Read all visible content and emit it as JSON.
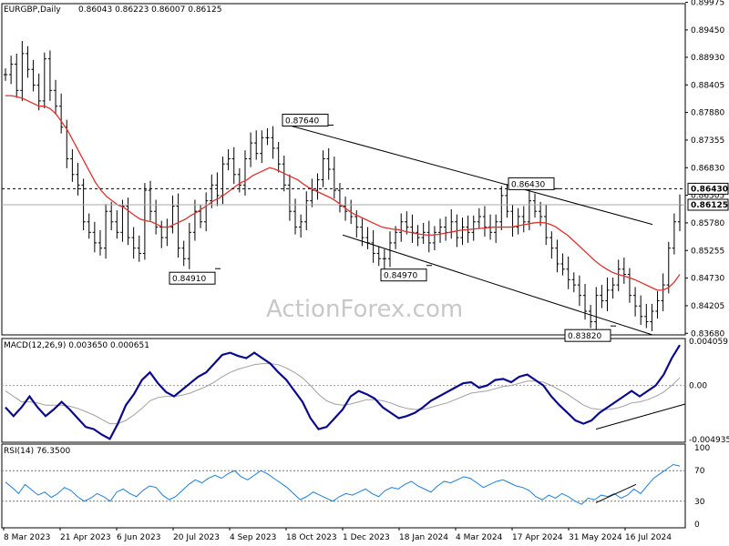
{
  "header": {
    "symbol": "EURGBP,Daily",
    "ohlc": "0.86043 0.86223 0.86007 0.86125"
  },
  "watermark": "ActionForex.com",
  "colors": {
    "price_bars": "#000000",
    "moving_average": "#e03030",
    "macd_main": "#0a0a8c",
    "macd_signal": "#a0a0a0",
    "rsi_line": "#1e7fd8",
    "trendline": "#000000",
    "label_text": "#000080"
  },
  "chart_data": [
    {
      "type": "ohlc",
      "panel": "price",
      "ylim": [
        0.8365,
        0.8995
      ],
      "price_ticks": [
        "0.89975",
        "0.89450",
        "0.88930",
        "0.88405",
        "0.87880",
        "0.87355",
        "0.86830",
        "0.86305",
        "0.85780",
        "0.85255",
        "0.84730",
        "0.84205",
        "0.83680"
      ],
      "x_labels": [
        "8 Mar 2023",
        "21 Apr 2023",
        "6 Jun 2023",
        "20 Jul 2023",
        "4 Sep 2023",
        "18 Oct 2023",
        "1 Dec 2023",
        "18 Jan 2024",
        "4 Mar 2024",
        "17 Apr 2024",
        "31 May 2024",
        "16 Jul 2024"
      ],
      "closes": [
        0.886,
        0.888,
        0.883,
        0.89,
        0.887,
        0.884,
        0.881,
        0.889,
        0.883,
        0.88,
        0.876,
        0.87,
        0.867,
        0.865,
        0.858,
        0.856,
        0.854,
        0.853,
        0.86,
        0.858,
        0.856,
        0.861,
        0.855,
        0.853,
        0.852,
        0.864,
        0.86,
        0.857,
        0.855,
        0.857,
        0.861,
        0.853,
        0.851,
        0.856,
        0.86,
        0.858,
        0.862,
        0.865,
        0.863,
        0.869,
        0.87,
        0.867,
        0.865,
        0.87,
        0.873,
        0.871,
        0.874,
        0.874,
        0.872,
        0.869,
        0.865,
        0.86,
        0.857,
        0.858,
        0.862,
        0.864,
        0.866,
        0.87,
        0.868,
        0.864,
        0.861,
        0.86,
        0.859,
        0.857,
        0.855,
        0.854,
        0.852,
        0.851,
        0.851,
        0.854,
        0.856,
        0.858,
        0.857,
        0.856,
        0.855,
        0.856,
        0.854,
        0.856,
        0.857,
        0.856,
        0.858,
        0.855,
        0.857,
        0.856,
        0.858,
        0.859,
        0.857,
        0.856,
        0.858,
        0.863,
        0.86,
        0.857,
        0.859,
        0.858,
        0.862,
        0.86,
        0.859,
        0.855,
        0.853,
        0.85,
        0.849,
        0.847,
        0.846,
        0.844,
        0.841,
        0.839,
        0.844,
        0.843,
        0.845,
        0.846,
        0.849,
        0.848,
        0.844,
        0.842,
        0.84,
        0.839,
        0.841,
        0.843,
        0.846,
        0.853,
        0.858,
        0.8612
      ],
      "moving_average_values": [
        0.882,
        0.882,
        0.8818,
        0.8815,
        0.881,
        0.8805,
        0.88,
        0.88,
        0.8795,
        0.8785,
        0.877,
        0.8755,
        0.8735,
        0.8715,
        0.8695,
        0.8675,
        0.8655,
        0.864,
        0.8628,
        0.862,
        0.8612,
        0.8608,
        0.86,
        0.8592,
        0.8585,
        0.8582,
        0.858,
        0.8575,
        0.857,
        0.857,
        0.8575,
        0.858,
        0.8585,
        0.8592,
        0.8598,
        0.8605,
        0.8612,
        0.862,
        0.8625,
        0.8632,
        0.864,
        0.8648,
        0.8655,
        0.866,
        0.8668,
        0.8673,
        0.8678,
        0.8683,
        0.868,
        0.8675,
        0.867,
        0.8665,
        0.866,
        0.8652,
        0.8645,
        0.864,
        0.8635,
        0.863,
        0.8625,
        0.8618,
        0.861,
        0.8602,
        0.8595,
        0.859,
        0.8585,
        0.858,
        0.8575,
        0.857,
        0.8568,
        0.8566,
        0.8565,
        0.8562,
        0.856,
        0.8558,
        0.8556,
        0.8555,
        0.8555,
        0.8556,
        0.8558,
        0.856,
        0.8562,
        0.8564,
        0.8565,
        0.8566,
        0.8567,
        0.8568,
        0.8569,
        0.857,
        0.857,
        0.857,
        0.857,
        0.8572,
        0.8574,
        0.8576,
        0.8578,
        0.8579,
        0.8578,
        0.8575,
        0.857,
        0.8562,
        0.8555,
        0.8545,
        0.8535,
        0.8525,
        0.8515,
        0.8505,
        0.8497,
        0.849,
        0.8484,
        0.848,
        0.8477,
        0.8474,
        0.847,
        0.8465,
        0.846,
        0.8455,
        0.845,
        0.845,
        0.8455,
        0.8465,
        0.848
      ],
      "dashed_level": "0.86430",
      "last_price": "0.86125",
      "annotations": [
        "0.84910",
        "0.87640",
        "0.84970",
        "0.86430",
        "0.83820"
      ],
      "trendlines": [
        {
          "from": [
            "18 Oct 2023",
            0.8765
          ],
          "to": [
            "16 Jul 2024",
            0.8575
          ]
        },
        {
          "from": [
            "1 Dec 2023",
            0.8555
          ],
          "to": [
            "16 Jul 2024",
            0.8365
          ]
        }
      ]
    },
    {
      "type": "line",
      "panel": "macd",
      "title": "MACD(12,26,9) 0.003650 0.000651",
      "ylim": [
        -0.0052,
        0.0043
      ],
      "tick_labels": [
        "0.004059",
        "0.00",
        "-0.004935"
      ],
      "series": [
        {
          "values": [
            -0.002,
            -0.0028,
            -0.002,
            -0.001,
            -0.002,
            -0.0028,
            -0.0022,
            -0.0015,
            -0.0022,
            -0.003,
            -0.0038,
            -0.004,
            -0.0045,
            -0.0049,
            -0.0035,
            -0.0018,
            -0.0008,
            0.0005,
            0.0012,
            0.0002,
            -0.0006,
            -0.001,
            -0.0004,
            0.0002,
            0.0008,
            0.0012,
            0.002,
            0.0028,
            0.003,
            0.0027,
            0.0025,
            0.003,
            0.0025,
            0.002,
            0.0012,
            0.0005,
            -0.0005,
            -0.0015,
            -0.003,
            -0.004,
            -0.0038,
            -0.003,
            -0.0022,
            -0.001,
            -0.0005,
            -0.0008,
            -0.0012,
            -0.002,
            -0.0025,
            -0.003,
            -0.0028,
            -0.0025,
            -0.002,
            -0.0014,
            -0.001,
            -0.0006,
            -0.0002,
            0.0002,
            0.0003,
            -0.0002,
            0.0,
            0.0005,
            0.0006,
            0.0003,
            0.0008,
            0.001,
            0.0005,
            0.0,
            -0.001,
            -0.0018,
            -0.0025,
            -0.0032,
            -0.0035,
            -0.0032,
            -0.0025,
            -0.002,
            -0.0015,
            -0.001,
            -0.0005,
            -0.001,
            -0.0005,
            0.0,
            0.001,
            0.0025,
            0.0037
          ]
        },
        {
          "values": [
            -0.0005,
            -0.001,
            -0.0015,
            -0.0015,
            -0.0016,
            -0.0018,
            -0.0018,
            -0.0018,
            -0.0019,
            -0.0021,
            -0.0024,
            -0.0027,
            -0.0031,
            -0.0035,
            -0.0035,
            -0.0032,
            -0.0027,
            -0.0021,
            -0.0014,
            -0.0011,
            -0.001,
            -0.001,
            -0.0009,
            -0.0007,
            -0.0004,
            -0.0001,
            0.0003,
            0.0008,
            0.0012,
            0.0015,
            0.0017,
            0.0019,
            0.002,
            0.002,
            0.0019,
            0.0016,
            0.0012,
            0.0007,
            0.0,
            -0.0008,
            -0.0014,
            -0.0017,
            -0.0018,
            -0.0017,
            -0.0015,
            -0.0013,
            -0.0013,
            -0.0014,
            -0.0016,
            -0.0019,
            -0.0021,
            -0.0022,
            -0.0022,
            -0.002,
            -0.0018,
            -0.0016,
            -0.0013,
            -0.001,
            -0.0007,
            -0.0006,
            -0.0005,
            -0.0003,
            -0.0001,
            0.0,
            0.0002,
            0.0004,
            0.0004,
            0.0003,
            0.0,
            -0.0004,
            -0.0008,
            -0.0013,
            -0.0018,
            -0.0021,
            -0.0022,
            -0.0022,
            -0.0021,
            -0.0019,
            -0.0016,
            -0.0015,
            -0.0013,
            -0.001,
            -0.0006,
            0.0,
            0.0007
          ]
        }
      ],
      "trendline": {
        "from": [
          "31 May 2024",
          -0.004
        ],
        "to": [
          "16 Jul 2024",
          -0.0017
        ]
      }
    },
    {
      "type": "line",
      "panel": "rsi",
      "title": "RSI(14) 76.3500",
      "ylim": [
        0,
        100
      ],
      "tick_labels": [
        "100",
        "70",
        "30",
        "0"
      ],
      "guide_levels": [
        70,
        30
      ],
      "series": [
        {
          "values": [
            55,
            48,
            40,
            52,
            45,
            38,
            42,
            35,
            40,
            48,
            44,
            36,
            30,
            34,
            40,
            36,
            30,
            42,
            46,
            40,
            36,
            44,
            50,
            48,
            38,
            32,
            36,
            44,
            52,
            58,
            54,
            60,
            64,
            60,
            66,
            70,
            62,
            58,
            64,
            70,
            66,
            60,
            54,
            48,
            40,
            32,
            36,
            42,
            38,
            34,
            30,
            36,
            40,
            38,
            42,
            46,
            40,
            36,
            44,
            48,
            46,
            52,
            56,
            50,
            46,
            42,
            50,
            56,
            54,
            58,
            62,
            60,
            54,
            48,
            52,
            56,
            58,
            54,
            50,
            48,
            44,
            36,
            32,
            38,
            34,
            40,
            36,
            30,
            26,
            34,
            32,
            38,
            36,
            40,
            34,
            38,
            46,
            40,
            50,
            60,
            66,
            72,
            78,
            76
          ]
        }
      ],
      "trendline": {
        "from": [
          "31 May 2024",
          28
        ],
        "to": [
          "16 Jul 2024",
          52
        ]
      }
    }
  ]
}
